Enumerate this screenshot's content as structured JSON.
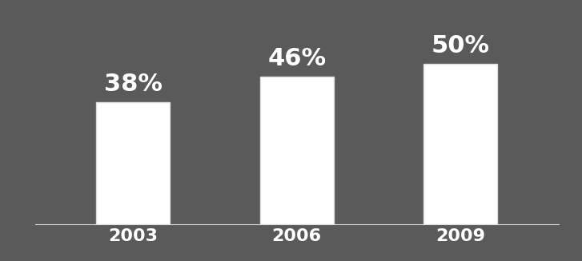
{
  "chart_data": {
    "type": "bar",
    "categories": [
      "2003",
      "2006",
      "2009"
    ],
    "values": [
      38,
      46,
      50
    ],
    "value_labels": [
      "38%",
      "46%",
      "50%"
    ],
    "data_labels": true,
    "color": "#ffffff",
    "tick_labels": "x"
  }
}
